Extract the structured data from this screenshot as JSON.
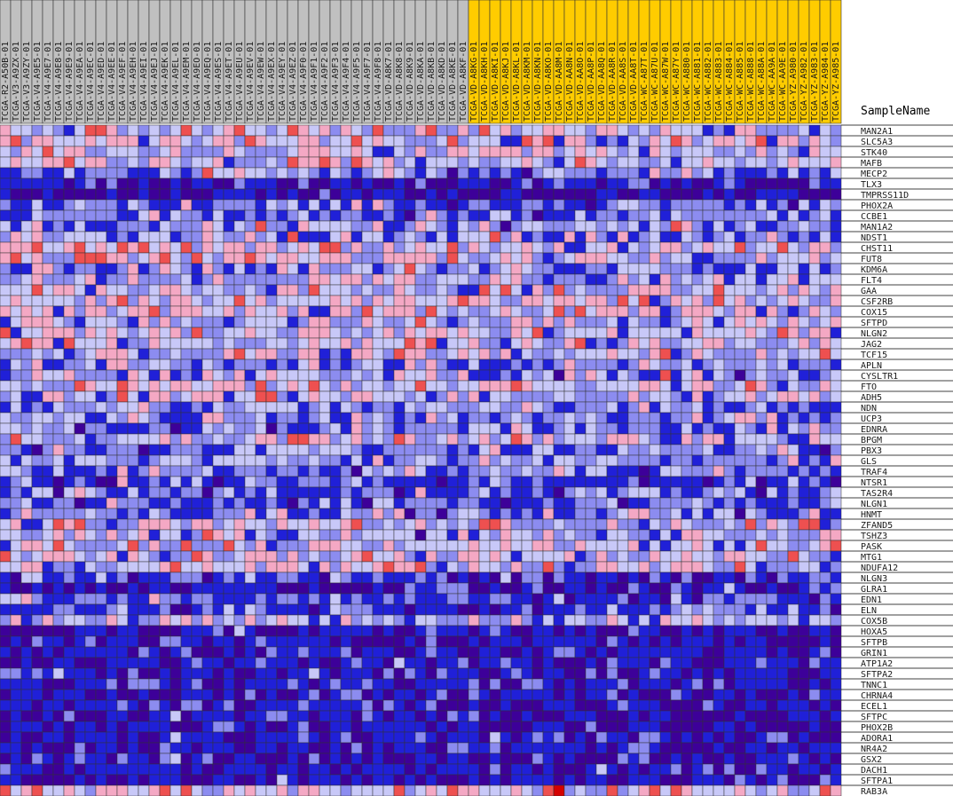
{
  "chart_data": {
    "type": "heatmap",
    "corner_label": "SampleName",
    "columns": [
      {
        "name": "TCGA-R2-A50B-01",
        "group": "A"
      },
      {
        "name": "TCGA-V3-A9ZX-01",
        "group": "A"
      },
      {
        "name": "TCGA-V3-A9ZY-01",
        "group": "A"
      },
      {
        "name": "TCGA-V4-A9E5-01",
        "group": "A"
      },
      {
        "name": "TCGA-V4-A9E7-01",
        "group": "A"
      },
      {
        "name": "TCGA-V4-A9E8-01",
        "group": "A"
      },
      {
        "name": "TCGA-V4-A9E9-01",
        "group": "A"
      },
      {
        "name": "TCGA-V4-A9EA-01",
        "group": "A"
      },
      {
        "name": "TCGA-V4-A9EC-01",
        "group": "A"
      },
      {
        "name": "TCGA-V4-A9ED-01",
        "group": "A"
      },
      {
        "name": "TCGA-V4-A9EE-01",
        "group": "A"
      },
      {
        "name": "TCGA-V4-A9EF-01",
        "group": "A"
      },
      {
        "name": "TCGA-V4-A9EH-01",
        "group": "A"
      },
      {
        "name": "TCGA-V4-A9EI-01",
        "group": "A"
      },
      {
        "name": "TCGA-V4-A9EJ-01",
        "group": "A"
      },
      {
        "name": "TCGA-V4-A9EK-01",
        "group": "A"
      },
      {
        "name": "TCGA-V4-A9EL-01",
        "group": "A"
      },
      {
        "name": "TCGA-V4-A9EM-01",
        "group": "A"
      },
      {
        "name": "TCGA-V4-A9EO-01",
        "group": "A"
      },
      {
        "name": "TCGA-V4-A9EQ-01",
        "group": "A"
      },
      {
        "name": "TCGA-V4-A9ES-01",
        "group": "A"
      },
      {
        "name": "TCGA-V4-A9ET-01",
        "group": "A"
      },
      {
        "name": "TCGA-V4-A9EU-01",
        "group": "A"
      },
      {
        "name": "TCGA-V4-A9EV-01",
        "group": "A"
      },
      {
        "name": "TCGA-V4-A9EW-01",
        "group": "A"
      },
      {
        "name": "TCGA-V4-A9EX-01",
        "group": "A"
      },
      {
        "name": "TCGA-V4-A9EY-01",
        "group": "A"
      },
      {
        "name": "TCGA-V4-A9EZ-01",
        "group": "A"
      },
      {
        "name": "TCGA-V4-A9F0-01",
        "group": "A"
      },
      {
        "name": "TCGA-V4-A9F1-01",
        "group": "A"
      },
      {
        "name": "TCGA-V4-A9F2-01",
        "group": "A"
      },
      {
        "name": "TCGA-V4-A9F3-01",
        "group": "A"
      },
      {
        "name": "TCGA-V4-A9F4-01",
        "group": "A"
      },
      {
        "name": "TCGA-V4-A9F5-01",
        "group": "A"
      },
      {
        "name": "TCGA-V4-A9F7-01",
        "group": "A"
      },
      {
        "name": "TCGA-V4-A9F8-01",
        "group": "A"
      },
      {
        "name": "TCGA-VD-A8K7-01",
        "group": "A"
      },
      {
        "name": "TCGA-VD-A8K8-01",
        "group": "A"
      },
      {
        "name": "TCGA-VD-A8K9-01",
        "group": "A"
      },
      {
        "name": "TCGA-VD-A8KA-01",
        "group": "A"
      },
      {
        "name": "TCGA-VD-A8KB-01",
        "group": "A"
      },
      {
        "name": "TCGA-VD-A8KD-01",
        "group": "A"
      },
      {
        "name": "TCGA-VD-A8KE-01",
        "group": "A"
      },
      {
        "name": "TCGA-VD-A8KF-01",
        "group": "A"
      },
      {
        "name": "TCGA-VD-A8KG-01",
        "group": "B"
      },
      {
        "name": "TCGA-VD-A8KH-01",
        "group": "B"
      },
      {
        "name": "TCGA-VD-A8KI-01",
        "group": "B"
      },
      {
        "name": "TCGA-VD-A8KJ-01",
        "group": "B"
      },
      {
        "name": "TCGA-VD-A8KL-01",
        "group": "B"
      },
      {
        "name": "TCGA-VD-A8KM-01",
        "group": "B"
      },
      {
        "name": "TCGA-VD-A8KN-01",
        "group": "B"
      },
      {
        "name": "TCGA-VD-A8KO-01",
        "group": "B"
      },
      {
        "name": "TCGA-VD-AA8M-01",
        "group": "B"
      },
      {
        "name": "TCGA-VD-AA8N-01",
        "group": "B"
      },
      {
        "name": "TCGA-VD-AA8O-01",
        "group": "B"
      },
      {
        "name": "TCGA-VD-AA8P-01",
        "group": "B"
      },
      {
        "name": "TCGA-VD-AA8Q-01",
        "group": "B"
      },
      {
        "name": "TCGA-VD-AA8R-01",
        "group": "B"
      },
      {
        "name": "TCGA-VD-AA8S-01",
        "group": "B"
      },
      {
        "name": "TCGA-VD-AA8T-01",
        "group": "B"
      },
      {
        "name": "TCGA-WC-A87T-01",
        "group": "B"
      },
      {
        "name": "TCGA-WC-A87U-01",
        "group": "B"
      },
      {
        "name": "TCGA-WC-A87W-01",
        "group": "B"
      },
      {
        "name": "TCGA-WC-A87Y-01",
        "group": "B"
      },
      {
        "name": "TCGA-WC-A880-01",
        "group": "B"
      },
      {
        "name": "TCGA-WC-A881-01",
        "group": "B"
      },
      {
        "name": "TCGA-WC-A882-01",
        "group": "B"
      },
      {
        "name": "TCGA-WC-A883-01",
        "group": "B"
      },
      {
        "name": "TCGA-WC-A884-01",
        "group": "B"
      },
      {
        "name": "TCGA-WC-A885-01",
        "group": "B"
      },
      {
        "name": "TCGA-WC-A888-01",
        "group": "B"
      },
      {
        "name": "TCGA-WC-A88A-01",
        "group": "B"
      },
      {
        "name": "TCGA-WC-AA9A-01",
        "group": "B"
      },
      {
        "name": "TCGA-WC-AA9E-01",
        "group": "B"
      },
      {
        "name": "TCGA-YZ-A980-01",
        "group": "B"
      },
      {
        "name": "TCGA-YZ-A982-01",
        "group": "B"
      },
      {
        "name": "TCGA-YZ-A983-01",
        "group": "B"
      },
      {
        "name": "TCGA-YZ-A984-01",
        "group": "B"
      },
      {
        "name": "TCGA-YZ-A985-01",
        "group": "B"
      }
    ],
    "rows": [
      "MAN2A1",
      "SLC5A3",
      "STK40",
      "MAFB",
      "MECP2",
      "TLX3",
      "TMPRSS11D",
      "PHOX2A",
      "CCBE1",
      "MAN1A2",
      "NDST1",
      "CHST11",
      "FUT8",
      "KDM6A",
      "FLT4",
      "GAA",
      "CSF2RB",
      "COX15",
      "SFTPD",
      "NLGN2",
      "JAG2",
      "TCF15",
      "APLN",
      "CYSLTR1",
      "FTO",
      "ADH5",
      "NDN",
      "UCP3",
      "EDNRA",
      "BPGM",
      "PBX3",
      "GLS",
      "TRAF4",
      "NTSR1",
      "TAS2R4",
      "NLGN1",
      "HNMT",
      "ZFAND5",
      "TSHZ3",
      "PASK",
      "MTG1",
      "NDUFA12",
      "NLGN3",
      "GLRA1",
      "EDN1",
      "ELN",
      "COX5B",
      "HOXA5",
      "SFTPB",
      "GRIN1",
      "ATP1A2",
      "SFTPA2",
      "TNNC1",
      "CHRNA4",
      "ECEL1",
      "SFTPC",
      "PHOX2B",
      "ADORA1",
      "NR4A2",
      "GSX2",
      "DACH1",
      "SFTPA1",
      "RAB3A"
    ],
    "row_mean_level": [
      0.0,
      0.15,
      -0.1,
      0.0,
      -0.3,
      -0.9,
      -1.05,
      -0.45,
      -0.35,
      -0.25,
      -0.15,
      0.1,
      0.1,
      -0.2,
      -0.1,
      0.0,
      0.05,
      0.0,
      -0.1,
      0.0,
      0.05,
      0.0,
      -0.3,
      -0.15,
      0.05,
      -0.05,
      -0.3,
      -0.2,
      -0.35,
      0.0,
      -0.3,
      -0.25,
      -0.3,
      -0.55,
      -0.45,
      -0.5,
      -0.3,
      0.0,
      -0.15,
      0.0,
      0.0,
      0.0,
      -0.65,
      -0.85,
      -0.55,
      -0.55,
      -0.1,
      -0.9,
      -0.9,
      -0.85,
      -0.85,
      -0.8,
      -0.75,
      -0.85,
      -0.85,
      -0.9,
      -1.0,
      -0.75,
      -0.85,
      -0.9,
      -0.9,
      -1.0,
      0.2
    ],
    "color_scale": {
      "levels": [
        -1.0,
        -0.5,
        -0.15,
        0.15,
        0.5,
        1.0
      ],
      "colors": [
        "#3d0099",
        "#2020d8",
        "#8c8cf0",
        "#c8c8f8",
        "#f4a8c4",
        "#ee5050",
        "#d40000"
      ]
    },
    "group_colors": {
      "A": "#c0c0c0",
      "B": "#ffcc00"
    },
    "grid_line_color": "#333333"
  }
}
